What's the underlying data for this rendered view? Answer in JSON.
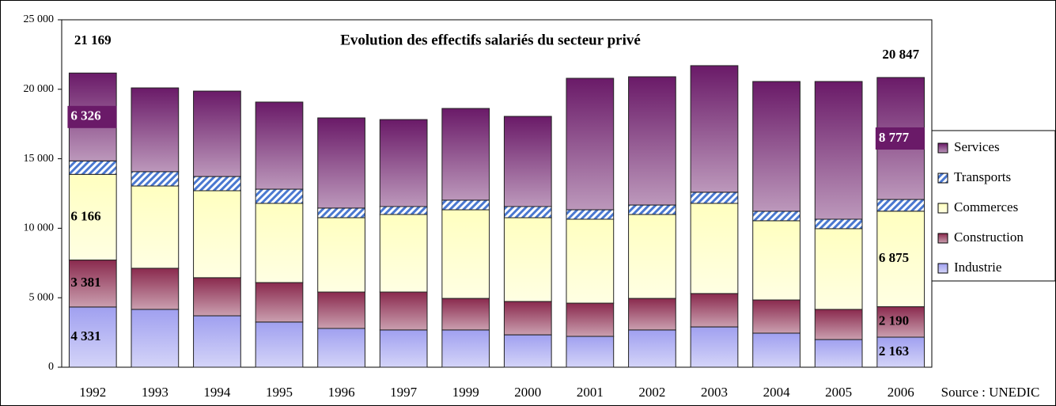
{
  "chart_data": {
    "type": "stacked_bar",
    "title": "Evolution des effectifs salariés du secteur privé",
    "source": "Source : UNEDIC",
    "categories": [
      "1992",
      "1993",
      "1994",
      "1995",
      "1996",
      "1997",
      "1999",
      "2000",
      "2001",
      "2002",
      "2003",
      "2004",
      "2005",
      "2006"
    ],
    "series": [
      {
        "name": "Industrie",
        "color": "#a0a0f0",
        "values": [
          4331,
          4160,
          3700,
          3250,
          2790,
          2680,
          2680,
          2330,
          2220,
          2680,
          2900,
          2450,
          1990,
          2163
        ],
        "value_labels": [
          "4 331",
          null,
          null,
          null,
          null,
          null,
          null,
          null,
          null,
          null,
          null,
          null,
          null,
          "2 163"
        ]
      },
      {
        "name": "Construction",
        "color": "#8a2a4e",
        "values": [
          3381,
          2960,
          2740,
          2840,
          2620,
          2730,
          2270,
          2400,
          2390,
          2270,
          2400,
          2390,
          2170,
          2190
        ],
        "value_labels": [
          "3 381",
          null,
          null,
          null,
          null,
          null,
          null,
          null,
          null,
          null,
          null,
          null,
          null,
          "2 190"
        ]
      },
      {
        "name": "Commerces",
        "color": "#ffffc0",
        "values": [
          6166,
          5920,
          6260,
          5700,
          5350,
          5580,
          6380,
          6030,
          6040,
          6040,
          6490,
          5700,
          5810,
          6875
        ],
        "value_labels": [
          "6 166",
          null,
          null,
          null,
          null,
          null,
          null,
          null,
          null,
          null,
          null,
          null,
          null,
          "6 875"
        ]
      },
      {
        "name": "Transports",
        "color": "#4a78d0",
        "pattern": "hatch",
        "values": [
          965,
          1030,
          1020,
          1020,
          690,
          570,
          690,
          800,
          680,
          680,
          800,
          680,
          680,
          842
        ]
      },
      {
        "name": "Services",
        "color": "#6a1a68",
        "values": [
          6326,
          6030,
          6150,
          6270,
          6490,
          6260,
          6600,
          6490,
          9460,
          9230,
          9110,
          9340,
          9910,
          8777
        ],
        "value_labels": [
          "6 326",
          null,
          null,
          null,
          null,
          null,
          null,
          null,
          null,
          null,
          null,
          null,
          null,
          "8 777"
        ]
      }
    ],
    "annotations": [
      {
        "category": "1992",
        "text": "21 169"
      },
      {
        "category": "2006",
        "text": "20 847"
      }
    ],
    "ylim": [
      0,
      25000
    ],
    "yticks": [
      0,
      {
        "value": 5000,
        "label": "5 000"
      },
      {
        "value": 10000,
        "label": "10 000"
      },
      {
        "value": 15000,
        "label": "15 000"
      },
      {
        "value": 20000,
        "label": "20 000"
      },
      {
        "value": 25000,
        "label": "25 000"
      }
    ],
    "legend": "right"
  }
}
